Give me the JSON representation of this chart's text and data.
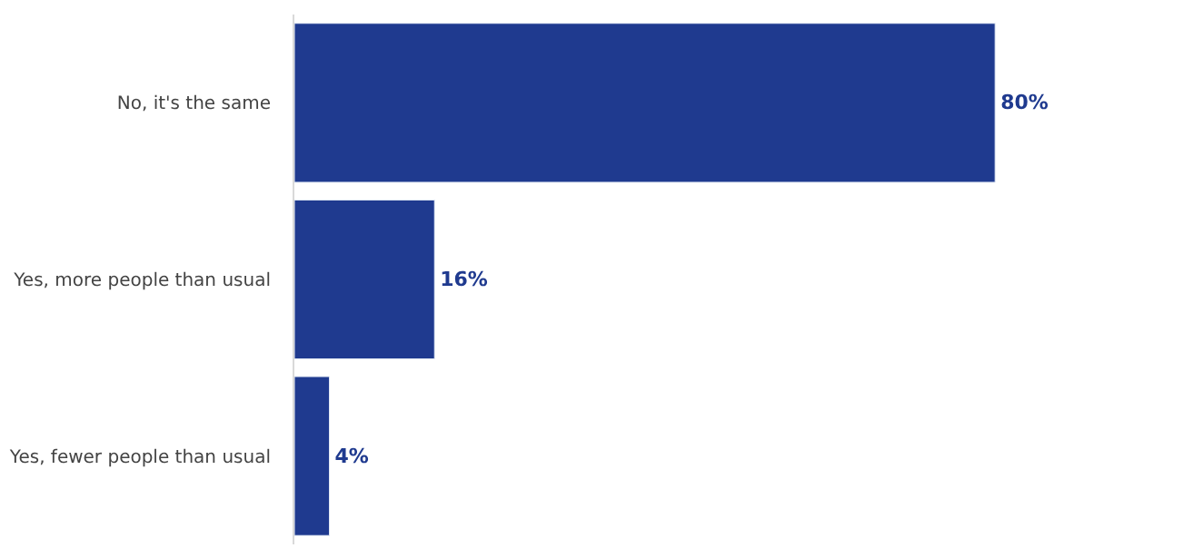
{
  "chart_data": {
    "type": "bar",
    "orientation": "horizontal",
    "categories": [
      "No, it's the same",
      "Yes, more people than usual",
      "Yes, fewer people than usual"
    ],
    "values": [
      80,
      16,
      4
    ],
    "value_labels": [
      "80%",
      "16%",
      "4%"
    ],
    "color": "#1f3a8f",
    "tick_labels": "y",
    "legend": false
  }
}
